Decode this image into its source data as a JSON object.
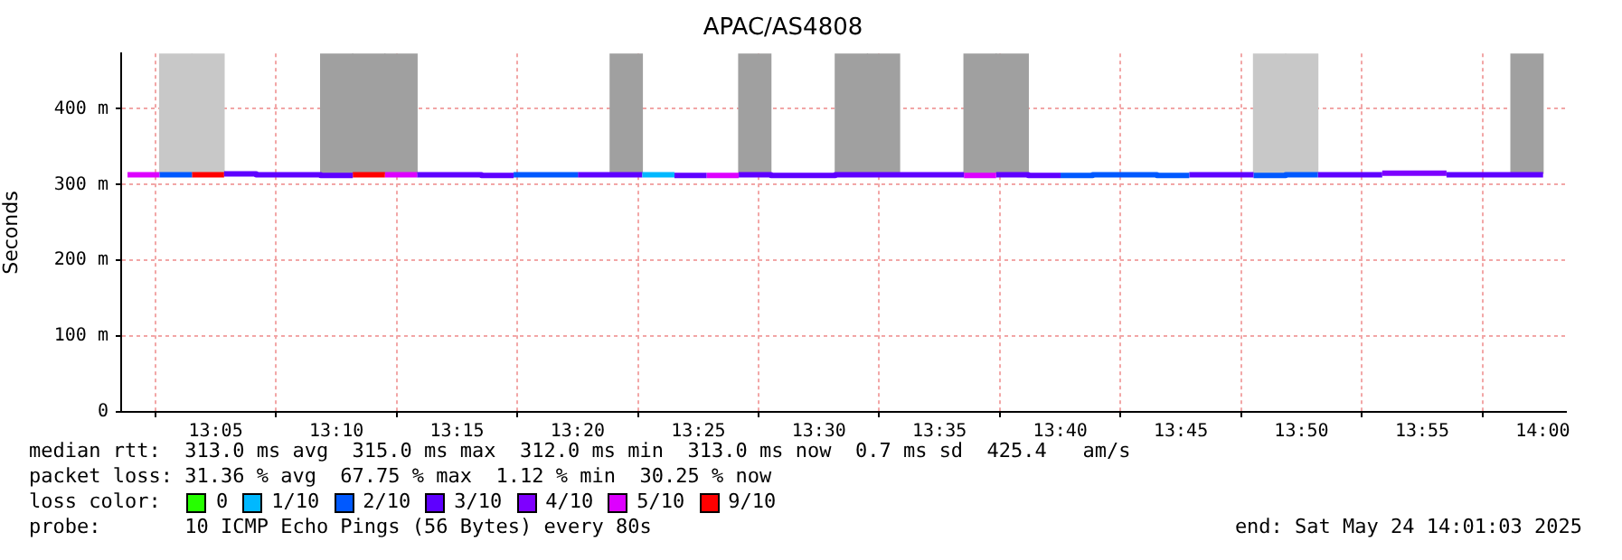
{
  "chart_data": {
    "type": "line",
    "title": "APAC/AS4808",
    "ylabel": "Seconds",
    "legend_title": "loss color:",
    "legend": "bottom",
    "grid": true,
    "marker": "none",
    "xlim": [
      13.018,
      14.016
    ],
    "xticks": [
      {
        "value": 13.0833,
        "label": "13:05"
      },
      {
        "value": 13.1667,
        "label": "13:10"
      },
      {
        "value": 13.25,
        "label": "13:15"
      },
      {
        "value": 13.3333,
        "label": "13:20"
      },
      {
        "value": 13.4167,
        "label": "13:25"
      },
      {
        "value": 13.5,
        "label": "13:30"
      },
      {
        "value": 13.5833,
        "label": "13:35"
      },
      {
        "value": 13.6667,
        "label": "13:40"
      },
      {
        "value": 13.75,
        "label": "13:45"
      },
      {
        "value": 13.8333,
        "label": "13:50"
      },
      {
        "value": 13.9167,
        "label": "13:55"
      },
      {
        "value": 14,
        "label": "14:00"
      }
    ],
    "ylim": [
      0,
      473
    ],
    "yticks": [
      0,
      {
        "value": 100,
        "label": "100 m"
      },
      {
        "value": 200,
        "label": "200 m"
      },
      {
        "value": 300,
        "label": "300 m"
      },
      {
        "value": 400,
        "label": "400 m"
      }
    ],
    "series": [
      {
        "type": "bar",
        "x": [
          13.0557,
          13.078,
          13.1669,
          13.1891,
          13.2113,
          13.3669,
          13.4557,
          13.5224,
          13.5446,
          13.6113,
          13.6335,
          13.8113,
          13.8335,
          13.9891
        ],
        "base": [
          315,
          315,
          315,
          315,
          315,
          315,
          315,
          315,
          315,
          315,
          315,
          315,
          315,
          315
        ],
        "values": [
          158,
          158,
          158,
          158,
          158,
          158,
          158,
          158,
          158,
          158,
          158,
          158,
          158,
          158
        ],
        "colors": [
          "#c8c8c8",
          "#c8c8c8",
          "#a0a0a0",
          "#a0a0a0",
          "#a0a0a0",
          "#a0a0a0",
          "#a0a0a0",
          "#a0a0a0",
          "#a0a0a0",
          "#a0a0a0",
          "#a0a0a0",
          "#c8c8c8",
          "#c8c8c8",
          "#a0a0a0"
        ]
      },
      {
        "name": "0",
        "color": "#26ff00"
      },
      {
        "name": "1/10",
        "color": "#00b8ff",
        "x": [
          13.378,
          13.4002
        ],
        "values": [
          313,
          313
        ]
      },
      {
        "name": "2/10",
        "color": "#0059ff",
        "x": [
          13.0446,
          13.0669
        ],
        "values": [
          313,
          313
        ]
      },
      {
        "name": "3/10",
        "color": "#5e00ff",
        "x": [
          13.0891,
          13.1113,
          13.1113,
          13.1558,
          13.1558,
          13.178
        ],
        "values": [
          314,
          314,
          313,
          313,
          312,
          312
        ]
      },
      {
        "name": "4/10",
        "color": "#7e00ff",
        "x": [
          13.8891,
          13.9335
        ],
        "values": [
          315,
          315
        ]
      },
      {
        "name": "5/10",
        "color": "#dd00ff",
        "x": [
          13.0224,
          13.0446
        ],
        "values": [
          313,
          313
        ]
      },
      {
        "name": "9/10",
        "color": "#ff0000",
        "x": [
          13.0669,
          13.0891
        ],
        "values": [
          313,
          313
        ]
      },
      {
        "color": "#ff0000",
        "x": [
          13.178,
          13.2002
        ],
        "values": [
          313,
          313
        ]
      },
      {
        "color": "#dd00ff",
        "x": [
          13.2002,
          13.2224
        ],
        "values": [
          313,
          313
        ]
      },
      {
        "color": "#5e00ff",
        "x": [
          13.2224,
          13.2669,
          13.2669,
          13.2891
        ],
        "values": [
          313,
          313,
          312,
          312
        ]
      },
      {
        "color": "#0059ff",
        "x": [
          13.2891,
          13.3335
        ],
        "values": [
          313,
          313
        ]
      },
      {
        "color": "#5e00ff",
        "x": [
          13.3335,
          13.378
        ],
        "values": [
          313,
          313
        ]
      },
      {
        "color": "#5e00ff",
        "x": [
          13.4002,
          13.4224
        ],
        "values": [
          312,
          312
        ]
      },
      {
        "color": "#dd00ff",
        "x": [
          13.4224,
          13.4446
        ],
        "values": [
          312,
          312
        ]
      },
      {
        "color": "#5e00ff",
        "x": [
          13.4446,
          13.4669,
          13.4669,
          13.5113,
          13.5113,
          13.6002
        ],
        "values": [
          313,
          313,
          312,
          312,
          313,
          313
        ]
      },
      {
        "color": "#dd00ff",
        "x": [
          13.6002,
          13.6224
        ],
        "values": [
          312,
          312
        ]
      },
      {
        "color": "#5e00ff",
        "x": [
          13.6224,
          13.6446,
          13.6446,
          13.6669
        ],
        "values": [
          313,
          313,
          312,
          312
        ]
      },
      {
        "color": "#0059ff",
        "x": [
          13.6669,
          13.6891,
          13.6891,
          13.7335,
          13.7335,
          13.7558
        ],
        "values": [
          312,
          312,
          313,
          313,
          312,
          312
        ]
      },
      {
        "color": "#5e00ff",
        "x": [
          13.7558,
          13.8002
        ],
        "values": [
          313,
          313
        ]
      },
      {
        "color": "#0059ff",
        "x": [
          13.8002,
          13.8224,
          13.8224,
          13.8446
        ],
        "values": [
          312,
          312,
          313,
          313
        ]
      },
      {
        "color": "#5e00ff",
        "x": [
          13.8446,
          13.8891
        ],
        "values": [
          313,
          313
        ]
      },
      {
        "color": "#5e00ff",
        "x": [
          13.9335,
          14.0002
        ],
        "values": [
          313,
          313
        ]
      }
    ],
    "annotations": [
      "median rtt:  313.0 ms avg  315.0 ms max  312.0 ms min  313.0 ms now  0.7 ms sd  425.4   am/s",
      "packet loss: 31.36 % avg  67.75 % max  1.12 % min  30.25 % now",
      "probe:       10 ICMP Echo Pings (56 Bytes) every 80s",
      "end: Sat May 24 14:01:03 2025"
    ]
  }
}
